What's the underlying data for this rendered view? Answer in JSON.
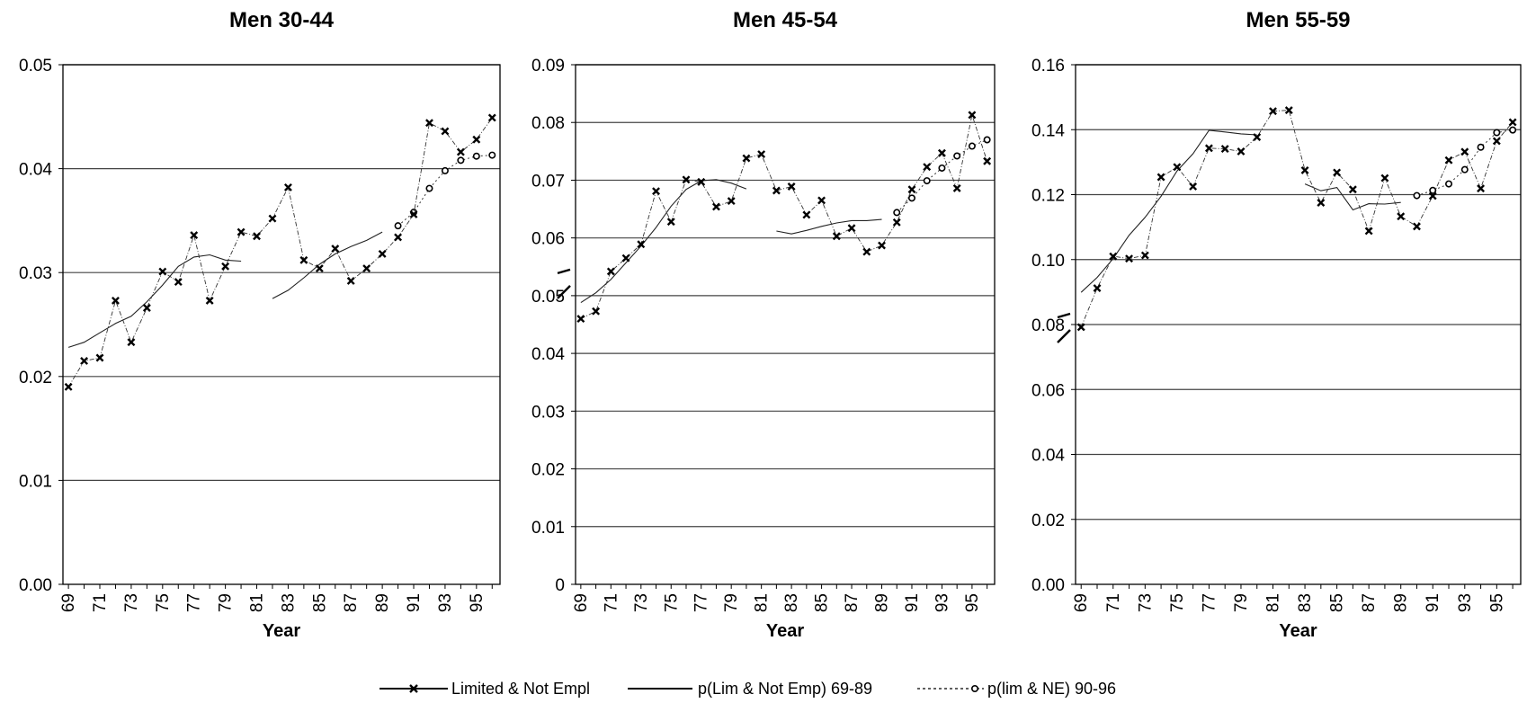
{
  "legend": [
    {
      "label": "Limited & Not Empl",
      "style": "solid-x"
    },
    {
      "label": "p(Lim & Not Emp) 69-89",
      "style": "solid"
    },
    {
      "label": "p(lim & NE) 90-96",
      "style": "dotted-o"
    }
  ],
  "chart_data": [
    {
      "type": "line",
      "title": "Men 30-44",
      "xlabel": "Year",
      "ylabel": "",
      "x": [
        69,
        70,
        71,
        72,
        73,
        74,
        75,
        76,
        77,
        78,
        79,
        80,
        81,
        82,
        83,
        84,
        85,
        86,
        87,
        88,
        89,
        90,
        91,
        92,
        93,
        94,
        95,
        96
      ],
      "xticks": [
        "69",
        "71",
        "73",
        "75",
        "77",
        "79",
        "81",
        "83",
        "85",
        "87",
        "89",
        "91",
        "93",
        "95"
      ],
      "ylim": [
        0,
        0.05
      ],
      "yticks": [
        "0.00",
        "0.01",
        "0.02",
        "0.03",
        "0.04",
        "0.05"
      ],
      "grid": true,
      "axis_break": false,
      "series": [
        {
          "name": "Limited & Not Empl",
          "values": [
            0.019,
            0.0215,
            0.0218,
            0.0273,
            0.0233,
            0.0266,
            0.0301,
            0.0291,
            0.0336,
            0.0273,
            0.0306,
            0.0339,
            0.0335,
            0.0352,
            0.0382,
            0.0312,
            0.0304,
            0.0323,
            0.0292,
            0.0304,
            0.0318,
            0.0334,
            0.0356,
            0.0444,
            0.0436,
            0.0416,
            0.0428,
            0.0449
          ]
        },
        {
          "name": "p(Lim & Not Emp) 69-89",
          "segments": [
            {
              "x": [
                69,
                70,
                71,
                72,
                73,
                74,
                75,
                76,
                77,
                78,
                79,
                80
              ],
              "values": [
                0.0228,
                0.0233,
                0.0242,
                0.0251,
                0.0258,
                0.0272,
                0.0288,
                0.0306,
                0.0315,
                0.0317,
                0.0312,
                0.0311
              ]
            },
            {
              "x": [
                82,
                83,
                84,
                85,
                86,
                87,
                88,
                89
              ],
              "values": [
                0.0275,
                0.0283,
                0.0295,
                0.0308,
                0.0318,
                0.0325,
                0.0331,
                0.0339
              ]
            }
          ]
        },
        {
          "name": "p(lim & NE) 90-96",
          "x": [
            90,
            91,
            92,
            93,
            94,
            95,
            96
          ],
          "values": [
            0.0345,
            0.0358,
            0.0381,
            0.0398,
            0.0408,
            0.0412,
            0.0413
          ]
        }
      ]
    },
    {
      "type": "line",
      "title": "Men 45-54",
      "xlabel": "Year",
      "ylabel": "",
      "x": [
        69,
        70,
        71,
        72,
        73,
        74,
        75,
        76,
        77,
        78,
        79,
        80,
        81,
        82,
        83,
        84,
        85,
        86,
        87,
        88,
        89,
        90,
        91,
        92,
        93,
        94,
        95,
        96
      ],
      "xticks": [
        "69",
        "71",
        "73",
        "75",
        "77",
        "79",
        "81",
        "83",
        "85",
        "87",
        "89",
        "91",
        "93",
        "95"
      ],
      "ylim": [
        0,
        0.09
      ],
      "yticks": [
        "0",
        "0.01",
        "0.02",
        "0.03",
        "0.04",
        "0.05",
        "0.06",
        "0.07",
        "0.08",
        "0.09"
      ],
      "grid": true,
      "axis_break": true,
      "series": [
        {
          "name": "Limited & Not Empl",
          "values": [
            0.046,
            0.0473,
            0.0542,
            0.0565,
            0.0589,
            0.0681,
            0.0628,
            0.0701,
            0.0697,
            0.0654,
            0.0664,
            0.0738,
            0.0745,
            0.0682,
            0.0689,
            0.064,
            0.0665,
            0.0603,
            0.0617,
            0.0576,
            0.0587,
            0.0627,
            0.0684,
            0.0723,
            0.0747,
            0.0686,
            0.0813,
            0.0733
          ]
        },
        {
          "name": "p(Lim & Not Emp) 69-89",
          "segments": [
            {
              "x": [
                69,
                70,
                71,
                72,
                73,
                74,
                75,
                76,
                77,
                78,
                79,
                80
              ],
              "values": [
                0.0488,
                0.0505,
                0.0528,
                0.0557,
                0.0586,
                0.0618,
                0.0655,
                0.0684,
                0.0699,
                0.0701,
                0.0695,
                0.0685
              ]
            },
            {
              "x": [
                82,
                83,
                84,
                85,
                86,
                87,
                88,
                89
              ],
              "values": [
                0.0612,
                0.0607,
                0.0613,
                0.062,
                0.0626,
                0.063,
                0.063,
                0.0632
              ]
            }
          ]
        },
        {
          "name": "p(lim & NE) 90-96",
          "x": [
            90,
            91,
            92,
            93,
            94,
            95,
            96
          ],
          "values": [
            0.0644,
            0.0669,
            0.0699,
            0.0721,
            0.0742,
            0.0759,
            0.077
          ]
        }
      ]
    },
    {
      "type": "line",
      "title": "Men 55-59",
      "xlabel": "Year",
      "ylabel": "",
      "x": [
        69,
        70,
        71,
        72,
        73,
        74,
        75,
        76,
        77,
        78,
        79,
        80,
        81,
        82,
        83,
        84,
        85,
        86,
        87,
        88,
        89,
        90,
        91,
        92,
        93,
        94,
        95,
        96
      ],
      "xticks": [
        "69",
        "71",
        "73",
        "75",
        "77",
        "79",
        "81",
        "83",
        "85",
        "87",
        "89",
        "91",
        "93",
        "95"
      ],
      "ylim": [
        0,
        0.16
      ],
      "yticks": [
        "0.00",
        "0.02",
        "0.04",
        "0.06",
        "0.08",
        "0.10",
        "0.12",
        "0.14",
        "0.16"
      ],
      "grid": true,
      "axis_break": true,
      "series": [
        {
          "name": "Limited & Not Empl",
          "values": [
            0.0792,
            0.0912,
            0.101,
            0.1003,
            0.1013,
            0.1254,
            0.1285,
            0.1225,
            0.1343,
            0.1341,
            0.1333,
            0.1377,
            0.1457,
            0.146,
            0.1275,
            0.1175,
            0.1268,
            0.1216,
            0.1088,
            0.1251,
            0.1133,
            0.1102,
            0.1196,
            0.1306,
            0.1332,
            0.1219,
            0.1365,
            0.1423
          ]
        },
        {
          "name": "p(Lim & Not Emp) 69-89",
          "segments": [
            {
              "x": [
                69,
                70,
                71,
                72,
                73,
                74,
                75,
                76,
                77,
                78,
                79,
                80
              ],
              "values": [
                0.0899,
                0.0945,
                0.1003,
                0.1075,
                0.113,
                0.1195,
                0.1273,
                0.1326,
                0.1398,
                0.1393,
                0.1387,
                0.1384
              ]
            },
            {
              "x": [
                83,
                84,
                85,
                86,
                87,
                88,
                89
              ],
              "values": [
                0.1233,
                0.1212,
                0.1222,
                0.1153,
                0.1172,
                0.1171,
                0.1176
              ]
            }
          ]
        },
        {
          "name": "p(lim & NE) 90-96",
          "x": [
            90,
            91,
            92,
            93,
            94,
            95,
            96
          ],
          "values": [
            0.1197,
            0.1213,
            0.1233,
            0.1277,
            0.1346,
            0.1391,
            0.1399
          ]
        }
      ]
    }
  ]
}
